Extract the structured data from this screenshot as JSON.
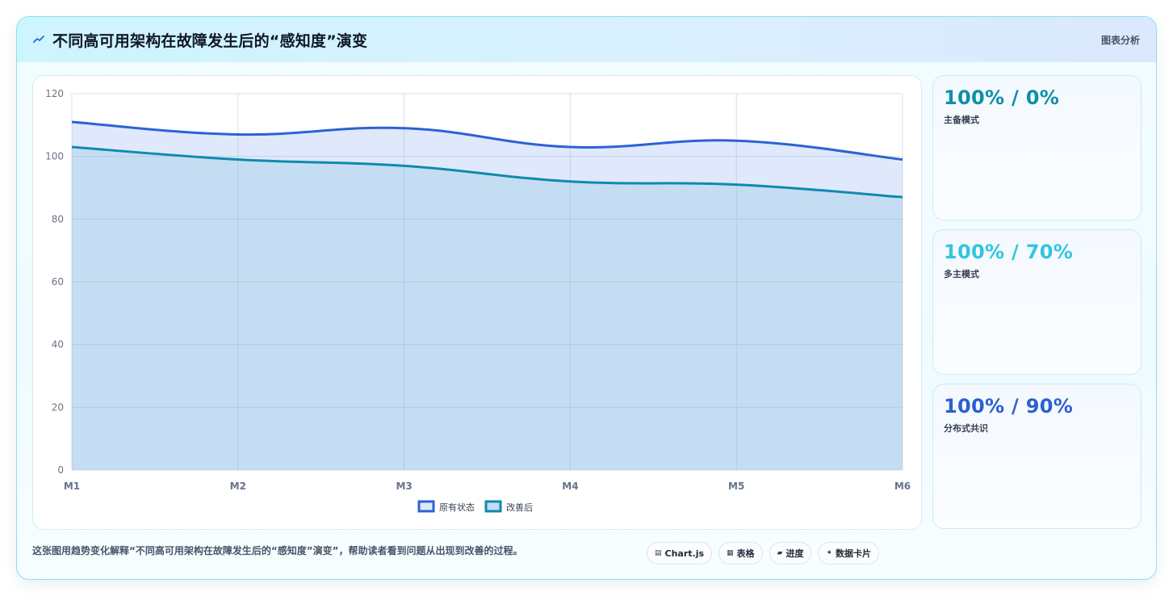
{
  "header": {
    "title": "不同高可用架构在故障发生后的“感知度”演变",
    "tag": "图表分析"
  },
  "chart_data": {
    "type": "area",
    "categories": [
      "M1",
      "M2",
      "M3",
      "M4",
      "M5",
      "M6"
    ],
    "ylim": [
      0,
      120
    ],
    "yticks": [
      0,
      20,
      40,
      60,
      80,
      100,
      120
    ],
    "grid": true,
    "legend_position": "bottom",
    "series": [
      {
        "name": "原有状态",
        "values": [
          111,
          107,
          109,
          103,
          105,
          99
        ],
        "color": "#2c62d6",
        "fill": "#dfe9fb"
      },
      {
        "name": "改善后",
        "values": [
          103,
          99,
          97,
          92,
          91,
          87
        ],
        "color": "#0f8aad",
        "fill": "#c5ddf2"
      }
    ]
  },
  "stats": [
    {
      "value": "100% / 0%",
      "label": "主备模式",
      "color": "#0e8fa8"
    },
    {
      "value": "100% / 70%",
      "label": "多主模式",
      "color": "#2fc6df"
    },
    {
      "value": "100% / 90%",
      "label": "分布式共识",
      "color": "#2c5fcf"
    }
  ],
  "footer": {
    "caption": "这张图用趋势变化解释“不同高可用架构在故障发生后的“感知度”演变”，帮助读者看到问题从出现到改善的过程。",
    "pills": [
      {
        "icon": "▤",
        "label": "Chart.js",
        "icon_name": "chart-icon"
      },
      {
        "icon": "▦",
        "label": "表格",
        "icon_name": "table-icon"
      },
      {
        "icon": "▰",
        "label": "进度",
        "icon_name": "progress-icon"
      },
      {
        "icon": "✦",
        "label": "数据卡片",
        "icon_name": "sparkle-icon"
      }
    ]
  }
}
